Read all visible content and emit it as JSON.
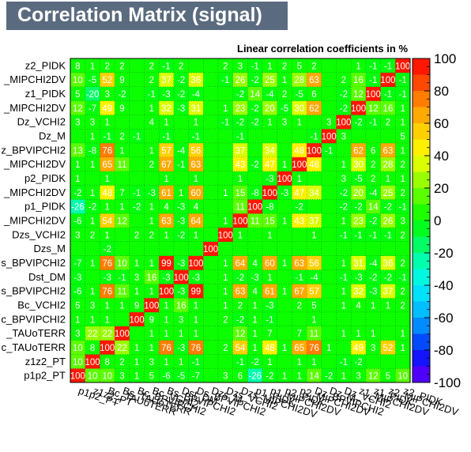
{
  "title": "Correlation Matrix (signal)",
  "subtitle": "Linear correlation coefficients in %",
  "chart_data": {
    "type": "heatmap",
    "title": "Correlation Matrix (signal)",
    "subtitle": "Linear correlation coefficients in %",
    "variables": [
      "p1p2_PT",
      "z1z2_PT",
      "Bc_TAUoTERR",
      "Bs_TAUoTERR",
      "Bc_BPVIPCHI2",
      "Bc_VCHI2",
      "Bs_BPVIPCHI2",
      "Dst_DM",
      "Ds_BPVIPCHI2",
      "Dzs_M",
      "Dzs_VCHI2",
      "Dzs_MIPCHI2DV",
      "p1_PIDK",
      "p1_MIPCHI2DV",
      "p2_PIDK",
      "p2_MIPCHI2DV",
      "Dz_BPVIPCHI2",
      "Dz_M",
      "Dz_VCHI2",
      "z1_MIPCHI2DV",
      "z1_PIDK",
      "z2_MIPCHI2DV",
      "z2_PIDK"
    ],
    "ylabels": [
      "p1p2_PT",
      "z1z2_PT",
      "c_TAUoTERR",
      "_TAUoTERR",
      "c_BPVIPCHI2",
      "Bc_VCHI2",
      "s_BPVIPCHI2",
      "Dst_DM",
      "s_BPVIPCHI2",
      "Dzs_M",
      "Dzs_VCHI2",
      "_MIPCHI2DV",
      "p1_PIDK",
      "_MIPCHI2DV",
      "p2_PIDK",
      "_MIPCHI2DV",
      "z_BPVIPCHI2",
      "Dz_M",
      "Dz_VCHI2",
      "_MIPCHI2DV",
      "z1_PIDK",
      "_MIPCHI2DV",
      "z2_PIDK"
    ],
    "xlabels": [
      "p1p2_PT",
      "z1z2_PT",
      "Bc_TAUoTERR",
      "Bs_TAUoTERR",
      "Bc_BPVIPCHI2",
      "Bc_VCHI2",
      "Bs_BPVIPCHI2",
      "Dst_DM",
      "Ds_BPVIPCHI2",
      "Dzs_M",
      "Dzs_VCHI2",
      "Dzs_MIPCHI2DV",
      "p1_PIDK",
      "p1_MIPCHI2DV",
      "p2_PIDK",
      "p2_MIPCHI2DV",
      "Dz_BPVIPCHI2",
      "Dz_M",
      "Dz_VCHI2",
      "z1_MIPCHI2DV",
      "z1_PIDK",
      "z2_MIPCHI2DV",
      "z2_PIDK"
    ],
    "values": [
      [
        100,
        10,
        10,
        3,
        1,
        5,
        -6,
        -5,
        -7,
        0,
        3,
        6,
        -26,
        -2,
        1,
        1,
        14,
        -2,
        1,
        3,
        12,
        5,
        10
      ],
      [
        10,
        100,
        8,
        2,
        1,
        3,
        1,
        1,
        -1,
        0,
        0,
        -1,
        -2,
        1,
        0,
        1,
        1,
        0,
        -1,
        -2,
        0,
        0,
        0
      ],
      [
        10,
        8,
        100,
        22,
        1,
        1,
        76,
        -3,
        76,
        0,
        2,
        54,
        1,
        48,
        1,
        65,
        76,
        1,
        0,
        49,
        3,
        52,
        1
      ],
      [
        3,
        22,
        22,
        100,
        0,
        1,
        1,
        1,
        1,
        0,
        0,
        12,
        1,
        7,
        0,
        7,
        11,
        0,
        1,
        1,
        1,
        0,
        1
      ],
      [
        1,
        1,
        1,
        0,
        100,
        9,
        1,
        3,
        1,
        0,
        2,
        -2,
        1,
        -1,
        0,
        0,
        1,
        0,
        0,
        0,
        0,
        0,
        0
      ],
      [
        5,
        3,
        1,
        1,
        9,
        100,
        1,
        16,
        1,
        0,
        1,
        2,
        1,
        -3,
        0,
        2,
        5,
        0,
        1,
        4,
        1,
        1,
        2
      ],
      [
        -6,
        1,
        76,
        11,
        1,
        1,
        100,
        -3,
        99,
        0,
        1,
        63,
        4,
        61,
        1,
        67,
        57,
        0,
        1,
        32,
        -3,
        37,
        2
      ],
      [
        -3,
        0,
        -3,
        -1,
        3,
        16,
        -3,
        100,
        -3,
        0,
        1,
        -2,
        -3,
        1,
        0,
        -1,
        -4,
        0,
        -1,
        -3,
        -2,
        -2,
        -1
      ],
      [
        -7,
        1,
        76,
        10,
        1,
        1,
        99,
        -3,
        100,
        0,
        1,
        64,
        4,
        60,
        1,
        63,
        56,
        0,
        1,
        31,
        -4,
        36,
        2
      ],
      [
        0,
        0,
        -2,
        0,
        0,
        0,
        0,
        0,
        0,
        100,
        0,
        0,
        0,
        0,
        0,
        0,
        0,
        0,
        0,
        0,
        0,
        0,
        0
      ],
      [
        3,
        2,
        1,
        0,
        2,
        2,
        1,
        -2,
        1,
        0,
        100,
        1,
        0,
        1,
        0,
        0,
        1,
        0,
        -1,
        -1,
        -1,
        -1,
        2
      ],
      [
        -6,
        1,
        54,
        12,
        0,
        1,
        63,
        -3,
        64,
        0,
        1,
        100,
        11,
        15,
        1,
        43,
        37,
        0,
        1,
        23,
        -2,
        26,
        3
      ],
      [
        -26,
        -2,
        1,
        1,
        -2,
        1,
        4,
        -3,
        4,
        0,
        0,
        11,
        100,
        -8,
        0,
        -2,
        0,
        0,
        -2,
        -2,
        14,
        -2,
        -1
      ],
      [
        -2,
        1,
        48,
        7,
        -1,
        -3,
        61,
        1,
        60,
        0,
        1,
        15,
        -8,
        100,
        -3,
        47,
        34,
        0,
        -2,
        20,
        -4,
        25,
        2
      ],
      [
        1,
        0,
        1,
        0,
        0,
        0,
        1,
        0,
        1,
        0,
        0,
        1,
        0,
        -3,
        100,
        1,
        0,
        0,
        3,
        -5,
        2,
        1,
        1
      ],
      [
        1,
        1,
        65,
        11,
        0,
        2,
        67,
        -1,
        63,
        0,
        0,
        43,
        -2,
        47,
        1,
        100,
        48,
        0,
        1,
        30,
        2,
        28,
        2
      ],
      [
        13,
        -8,
        76,
        1,
        0,
        1,
        57,
        -4,
        56,
        0,
        0,
        37,
        0,
        34,
        0,
        48,
        100,
        -1,
        0,
        62,
        6,
        63,
        1
      ],
      [
        0,
        1,
        -1,
        2,
        -1,
        0,
        -1,
        0,
        -1,
        0,
        0,
        -1,
        0,
        0,
        0,
        0,
        -1,
        100,
        3,
        0,
        0,
        0,
        5
      ],
      [
        3,
        3,
        1,
        0,
        0,
        4,
        1,
        0,
        1,
        0,
        -1,
        -2,
        -2,
        1,
        3,
        1,
        0,
        3,
        100,
        -2,
        -1,
        2,
        1
      ],
      [
        12,
        -7,
        49,
        9,
        0,
        1,
        32,
        -3,
        31,
        0,
        1,
        23,
        -2,
        20,
        -5,
        30,
        62,
        0,
        -2,
        100,
        12,
        16,
        1
      ],
      [
        5,
        -20,
        3,
        -2,
        0,
        -1,
        -3,
        -2,
        -4,
        0,
        0,
        -2,
        14,
        -4,
        2,
        -5,
        6,
        0,
        -2,
        12,
        100,
        -1,
        -1
      ],
      [
        10,
        -5,
        52,
        9,
        0,
        2,
        37,
        -2,
        36,
        0,
        -1,
        26,
        -2,
        25,
        1,
        28,
        63,
        0,
        2,
        16,
        -1,
        100,
        -1
      ],
      [
        8,
        1,
        2,
        2,
        0,
        2,
        -1,
        2,
        0,
        0,
        2,
        3,
        -1,
        1,
        2,
        5,
        2,
        0,
        0,
        1,
        -1,
        -1,
        100
      ]
    ],
    "zlim": [
      -100,
      100
    ],
    "colorbar_ticks": [
      -100,
      -80,
      -60,
      -40,
      -20,
      0,
      20,
      40,
      60,
      80,
      100
    ],
    "grid": true
  }
}
